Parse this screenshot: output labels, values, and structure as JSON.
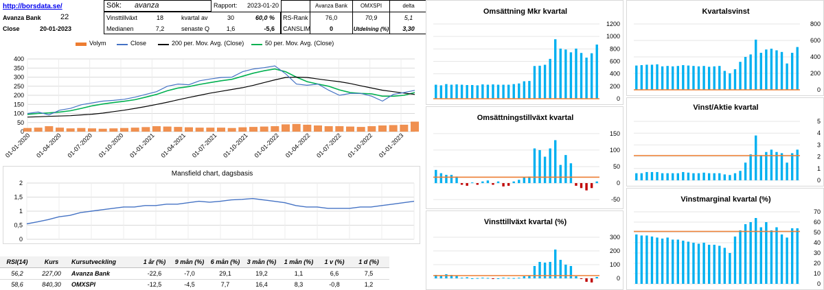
{
  "header": {
    "link": "http://borsdata.se/",
    "company_label": "Avanza Bank",
    "company_value": "22",
    "close_label": "Close",
    "close_date": "20-01-2023",
    "search_label": "Sök:",
    "search_value": "avanza",
    "rapport_label": "Rapport:",
    "rapport_value": "2023-01-20",
    "row1": {
      "label": "Vinsttillväxt",
      "v1": "18",
      "mid": "kvartal av",
      "v2": "30",
      "pct": "60,0 %"
    },
    "row2": {
      "label": "Medianen",
      "v1": "7,2",
      "mid": "senaste Q",
      "v2": "1,6",
      "pct": "-5,6"
    },
    "rank_headers": [
      "Avanza Bank",
      "OMXSPI",
      "delta"
    ],
    "rs_rank": {
      "label": "RS-Rank",
      "v1": "76,0",
      "v2": "70,9",
      "v3": "5,1"
    },
    "canslim": {
      "label": "CANSLIM",
      "v1": "0",
      "utd_label": "Utdelning (%)",
      "utd_value": "3,30"
    }
  },
  "colors": {
    "volume": "#ed7d31",
    "close": "#4472c4",
    "ma200": "#000000",
    "ma50": "#00b050",
    "bar": "#00b0f0",
    "neg": "#c00000",
    "refline": "#ed7d31",
    "mansfield": "#4472c4"
  },
  "price_chart": {
    "legend": [
      "Volym",
      "Close",
      "200 per. Mov. Avg. (Close)",
      "50 per. Mov. Avg. (Close)"
    ],
    "y_ticks": [
      "400",
      "350",
      "300",
      "250",
      "200",
      "150",
      "100",
      "50",
      "0"
    ],
    "x_ticks": [
      "01-01-2020",
      "01-04-2020",
      "01-07-2020",
      "01-10-2020",
      "01-01-2021",
      "01-04-2021",
      "01-07-2021",
      "01-10-2021",
      "01-01-2022",
      "01-04-2022",
      "01-07-2022",
      "01-10-2022",
      "01-01-2023"
    ]
  },
  "mansfield": {
    "title": "Mansfield chart, dagsbasis",
    "y_ticks": [
      "2",
      "1,5",
      "1",
      "0,5",
      "0"
    ]
  },
  "perf_table": {
    "headers": [
      "RSI(14)",
      "Kurs",
      "Kursutveckling",
      "1 år (%)",
      "9 mån (%)",
      "6 mån (%)",
      "3 mån (%)",
      "1 mån (%)",
      "1 v (%)",
      "1 d (%)"
    ],
    "rows": [
      [
        "56,2",
        "227,00",
        "Avanza Bank",
        "-22,6",
        "-7,0",
        "29,1",
        "19,2",
        "1,1",
        "6,6",
        "7,5"
      ],
      [
        "58,6",
        "840,30",
        "OMXSPI",
        "-12,5",
        "-4,5",
        "7,7",
        "16,4",
        "8,3",
        "-0,8",
        "1,2"
      ]
    ]
  },
  "chart_data": [
    {
      "type": "line",
      "title": "",
      "x": [
        "2020-01",
        "2020-02",
        "2020-03",
        "2020-04",
        "2020-05",
        "2020-06",
        "2020-07",
        "2020-08",
        "2020-09",
        "2020-10",
        "2020-11",
        "2020-12",
        "2021-01",
        "2021-02",
        "2021-03",
        "2021-04",
        "2021-05",
        "2021-06",
        "2021-07",
        "2021-08",
        "2021-09",
        "2021-10",
        "2021-11",
        "2021-12",
        "2022-01",
        "2022-02",
        "2022-03",
        "2022-04",
        "2022-05",
        "2022-06",
        "2022-07",
        "2022-08",
        "2022-09",
        "2022-10",
        "2022-11",
        "2022-12",
        "2023-01"
      ],
      "series": [
        {
          "name": "Close",
          "values": [
            100,
            108,
            92,
            118,
            128,
            148,
            158,
            168,
            172,
            178,
            190,
            205,
            220,
            250,
            262,
            258,
            280,
            290,
            298,
            300,
            330,
            345,
            352,
            362,
            318,
            262,
            255,
            262,
            228,
            200,
            210,
            210,
            195,
            168,
            205,
            215,
            227
          ]
        },
        {
          "name": "200 per. Mov. Avg. (Close)",
          "values": [
            80,
            82,
            84,
            86,
            88,
            92,
            96,
            102,
            110,
            118,
            128,
            138,
            150,
            162,
            175,
            188,
            200,
            212,
            222,
            232,
            242,
            255,
            270,
            285,
            298,
            300,
            298,
            290,
            282,
            275,
            265,
            252,
            240,
            228,
            220,
            212,
            205
          ]
        },
        {
          "name": "50 per. Mov. Avg. (Close)",
          "values": [
            95,
            100,
            103,
            108,
            115,
            128,
            142,
            152,
            160,
            167,
            176,
            190,
            205,
            225,
            240,
            248,
            260,
            270,
            280,
            288,
            305,
            322,
            335,
            345,
            330,
            300,
            275,
            262,
            250,
            230,
            215,
            210,
            208,
            195,
            195,
            200,
            215
          ]
        },
        {
          "name": "Volym",
          "values": [
            20,
            22,
            30,
            22,
            18,
            20,
            18,
            16,
            18,
            20,
            22,
            25,
            30,
            28,
            26,
            24,
            22,
            22,
            22,
            20,
            24,
            26,
            28,
            30,
            40,
            42,
            38,
            34,
            30,
            30,
            28,
            26,
            30,
            34,
            36,
            38,
            55
          ]
        }
      ],
      "ylim": [
        0,
        400
      ]
    },
    {
      "type": "line",
      "title": "Mansfield chart, dagsbasis",
      "series": [
        {
          "name": "",
          "values": [
            0.55,
            0.62,
            0.7,
            0.8,
            0.85,
            0.95,
            1.0,
            1.05,
            1.1,
            1.15,
            1.15,
            1.2,
            1.2,
            1.25,
            1.25,
            1.3,
            1.35,
            1.32,
            1.35,
            1.4,
            1.42,
            1.45,
            1.4,
            1.35,
            1.3,
            1.2,
            1.15,
            1.15,
            1.1,
            1.1,
            1.1,
            1.15,
            1.15,
            1.2,
            1.25,
            1.3,
            1.35
          ]
        }
      ],
      "ylim": [
        0,
        2
      ]
    },
    {
      "type": "bar",
      "title": "Omsättning Mkr kvartal",
      "values": [
        225,
        215,
        235,
        225,
        230,
        225,
        220,
        220,
        215,
        230,
        225,
        230,
        225,
        225,
        225,
        235,
        245,
        280,
        285,
        525,
        530,
        545,
        640,
        955,
        805,
        790,
        745,
        805,
        735,
        660,
        730,
        870
      ],
      "yticks": [
        "1200",
        "1000",
        "800",
        "600",
        "400",
        "200",
        "0"
      ],
      "ylim": [
        0,
        1200
      ],
      "refline": 0
    },
    {
      "type": "bar",
      "title": "Kvartalsvinst",
      "values": [
        295,
        300,
        305,
        305,
        310,
        285,
        290,
        285,
        290,
        300,
        295,
        290,
        285,
        290,
        280,
        285,
        290,
        230,
        200,
        250,
        340,
        400,
        430,
        610,
        450,
        490,
        500,
        480,
        460,
        320,
        450,
        520
      ],
      "yticks": [
        "800",
        "600",
        "400",
        "200",
        "0"
      ],
      "ylim": [
        0,
        800
      ],
      "refline": 0
    },
    {
      "type": "bar",
      "title": "Omsättningstillväxt kvartal",
      "values": [
        40,
        30,
        25,
        25,
        20,
        -5,
        -8,
        2,
        -5,
        5,
        8,
        -5,
        5,
        -10,
        -8,
        5,
        10,
        18,
        20,
        105,
        100,
        80,
        105,
        130,
        55,
        85,
        60,
        -8,
        -15,
        -22,
        -15,
        5
      ],
      "yticks": [
        "150",
        "100",
        "50",
        "0",
        "-50"
      ],
      "ylim": [
        -60,
        160
      ],
      "refline": 18
    },
    {
      "type": "bar",
      "title": "Vinst/Aktie kvartal",
      "values": [
        0.6,
        0.6,
        0.7,
        0.7,
        0.7,
        0.6,
        0.6,
        0.6,
        0.6,
        0.7,
        0.65,
        0.6,
        0.6,
        0.65,
        0.6,
        0.6,
        0.6,
        0.5,
        0.45,
        0.6,
        0.8,
        1.5,
        2.2,
        3.8,
        2.1,
        2.4,
        2.6,
        2.4,
        2.3,
        1.5,
        2.3,
        2.6
      ],
      "yticks": [
        "5",
        "4",
        "3",
        "2",
        "1",
        "0"
      ],
      "ylim": [
        0,
        5
      ],
      "refline": 2.1
    },
    {
      "type": "bar",
      "title": "Vinsttillväxt kvartal (%)",
      "values": [
        25,
        20,
        30,
        25,
        20,
        5,
        8,
        0,
        2,
        5,
        3,
        -2,
        0,
        5,
        3,
        2,
        5,
        15,
        20,
        90,
        120,
        115,
        120,
        210,
        135,
        100,
        90,
        15,
        -5,
        -25,
        -30,
        10
      ],
      "yticks": [
        "300",
        "200",
        "100",
        "0"
      ],
      "ylim": [
        -40,
        320
      ],
      "refline": 20
    },
    {
      "type": "bar",
      "title": "Vinstmarginal kvartal (%)",
      "values": [
        48,
        47,
        47,
        46,
        45,
        44,
        45,
        43,
        43,
        42,
        41,
        40,
        39,
        40,
        38,
        38,
        37,
        35,
        30,
        46,
        52,
        58,
        60,
        64,
        55,
        60,
        52,
        55,
        48,
        45,
        54,
        54
      ],
      "yticks": [
        "70",
        "60",
        "50",
        "40",
        "30",
        "20",
        "10",
        "0"
      ],
      "ylim": [
        0,
        70
      ],
      "refline": 51
    }
  ]
}
